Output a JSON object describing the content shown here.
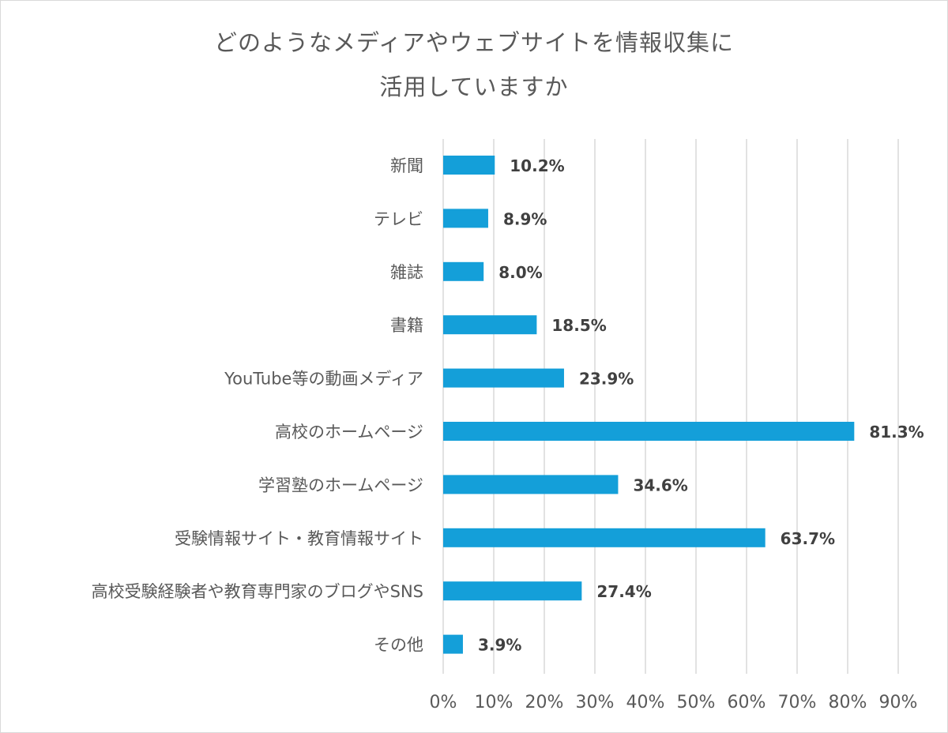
{
  "chart_data": {
    "type": "bar",
    "orientation": "horizontal",
    "title_lines": [
      "どのようなメディアやウェブサイトを情報収集に",
      "活用していますか"
    ],
    "categories": [
      "新聞",
      "テレビ",
      "雑誌",
      "書籍",
      "YouTube等の動画メディア",
      "高校のホームページ",
      "学習塾のホームページ",
      "受験情報サイト・教育情報サイト",
      "高校受験経験者や教育専門家のブログやSNS",
      "その他"
    ],
    "values": [
      10.2,
      8.9,
      8.0,
      18.5,
      23.9,
      81.3,
      34.6,
      63.7,
      27.4,
      3.9
    ],
    "value_labels": [
      "10.2%",
      "8.9%",
      "8.0%",
      "18.5%",
      "23.9%",
      "81.3%",
      "34.6%",
      "63.7%",
      "27.4%",
      "3.9%"
    ],
    "xlim": [
      0,
      90
    ],
    "x_ticks": [
      0,
      10,
      20,
      30,
      40,
      50,
      60,
      70,
      80,
      90
    ],
    "x_tick_labels": [
      "0%",
      "10%",
      "20%",
      "30%",
      "40%",
      "50%",
      "60%",
      "70%",
      "80%",
      "90%"
    ],
    "grid": "vertical",
    "legend": "none"
  },
  "colors": {
    "bar": "#149fd9",
    "grid": "#d9d9d9",
    "text": "#595959",
    "data_label": "#404040"
  }
}
